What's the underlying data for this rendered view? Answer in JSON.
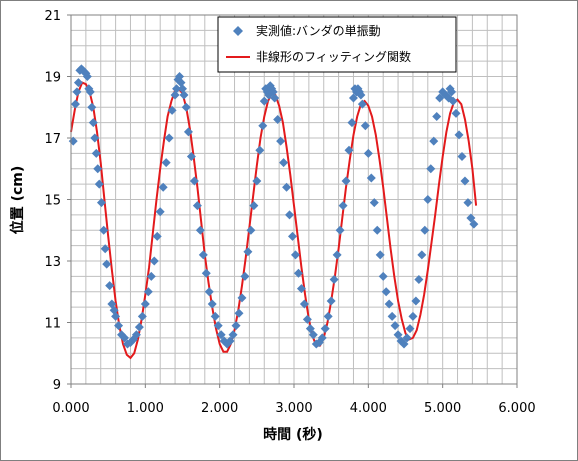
{
  "chart_data": {
    "type": "scatter",
    "title": "",
    "xlabel": "時間 (秒)",
    "ylabel": "位置 (cm)",
    "xlim": [
      0,
      6
    ],
    "ylim": [
      9,
      21
    ],
    "xticks": [
      "0.000",
      "1.000",
      "2.000",
      "3.000",
      "4.000",
      "5.000",
      "6.000"
    ],
    "yticks": [
      "9",
      "11",
      "13",
      "15",
      "17",
      "19",
      "21"
    ],
    "grid": true,
    "legend_position": "top-right",
    "series": [
      {
        "name": "実測値:バンダの単振動",
        "kind": "scatter",
        "marker": "diamond",
        "color": "#4f81bd",
        "points": [
          [
            0.03,
            16.9
          ],
          [
            0.06,
            18.1
          ],
          [
            0.08,
            18.5
          ],
          [
            0.1,
            18.8
          ],
          [
            0.12,
            19.2
          ],
          [
            0.14,
            19.25
          ],
          [
            0.16,
            19.2
          ],
          [
            0.18,
            19.15
          ],
          [
            0.2,
            19.1
          ],
          [
            0.22,
            19.0
          ],
          [
            0.24,
            18.6
          ],
          [
            0.26,
            18.5
          ],
          [
            0.28,
            18.0
          ],
          [
            0.3,
            17.5
          ],
          [
            0.32,
            17.0
          ],
          [
            0.34,
            16.5
          ],
          [
            0.36,
            16.0
          ],
          [
            0.38,
            15.5
          ],
          [
            0.41,
            14.9
          ],
          [
            0.44,
            14.0
          ],
          [
            0.46,
            13.4
          ],
          [
            0.48,
            12.9
          ],
          [
            0.52,
            12.2
          ],
          [
            0.55,
            11.6
          ],
          [
            0.58,
            11.4
          ],
          [
            0.6,
            11.2
          ],
          [
            0.64,
            10.9
          ],
          [
            0.68,
            10.6
          ],
          [
            0.72,
            10.5
          ],
          [
            0.76,
            10.3
          ],
          [
            0.8,
            10.35
          ],
          [
            0.84,
            10.45
          ],
          [
            0.88,
            10.6
          ],
          [
            0.92,
            10.85
          ],
          [
            0.96,
            11.2
          ],
          [
            1.0,
            11.6
          ],
          [
            1.04,
            12.0
          ],
          [
            1.08,
            12.5
          ],
          [
            1.12,
            13.0
          ],
          [
            1.16,
            13.8
          ],
          [
            1.2,
            14.6
          ],
          [
            1.24,
            15.4
          ],
          [
            1.28,
            16.2
          ],
          [
            1.32,
            17.0
          ],
          [
            1.36,
            17.9
          ],
          [
            1.4,
            18.4
          ],
          [
            1.42,
            18.6
          ],
          [
            1.44,
            18.9
          ],
          [
            1.46,
            19.0
          ],
          [
            1.48,
            18.8
          ],
          [
            1.5,
            18.6
          ],
          [
            1.52,
            18.4
          ],
          [
            1.55,
            18.0
          ],
          [
            1.58,
            17.2
          ],
          [
            1.62,
            16.4
          ],
          [
            1.66,
            15.6
          ],
          [
            1.7,
            14.8
          ],
          [
            1.74,
            14.0
          ],
          [
            1.78,
            13.2
          ],
          [
            1.82,
            12.6
          ],
          [
            1.86,
            12.0
          ],
          [
            1.9,
            11.6
          ],
          [
            1.94,
            11.2
          ],
          [
            1.98,
            10.9
          ],
          [
            2.02,
            10.6
          ],
          [
            2.06,
            10.4
          ],
          [
            2.1,
            10.3
          ],
          [
            2.14,
            10.4
          ],
          [
            2.18,
            10.6
          ],
          [
            2.22,
            10.9
          ],
          [
            2.26,
            11.3
          ],
          [
            2.3,
            11.8
          ],
          [
            2.34,
            12.5
          ],
          [
            2.38,
            13.3
          ],
          [
            2.42,
            14.0
          ],
          [
            2.46,
            14.8
          ],
          [
            2.5,
            15.6
          ],
          [
            2.54,
            16.6
          ],
          [
            2.58,
            17.4
          ],
          [
            2.6,
            18.2
          ],
          [
            2.62,
            18.6
          ],
          [
            2.64,
            18.5
          ],
          [
            2.66,
            18.4
          ],
          [
            2.68,
            18.7
          ],
          [
            2.7,
            18.6
          ],
          [
            2.72,
            18.5
          ],
          [
            2.74,
            18.3
          ],
          [
            2.78,
            17.6
          ],
          [
            2.82,
            16.9
          ],
          [
            2.86,
            16.2
          ],
          [
            2.9,
            15.4
          ],
          [
            2.94,
            14.5
          ],
          [
            2.98,
            13.8
          ],
          [
            3.02,
            13.2
          ],
          [
            3.06,
            12.6
          ],
          [
            3.1,
            12.1
          ],
          [
            3.14,
            11.6
          ],
          [
            3.18,
            11.1
          ],
          [
            3.22,
            10.8
          ],
          [
            3.26,
            10.6
          ],
          [
            3.3,
            10.3
          ],
          [
            3.34,
            10.35
          ],
          [
            3.38,
            10.5
          ],
          [
            3.42,
            10.8
          ],
          [
            3.46,
            11.2
          ],
          [
            3.5,
            11.7
          ],
          [
            3.54,
            12.4
          ],
          [
            3.58,
            13.2
          ],
          [
            3.62,
            14.0
          ],
          [
            3.66,
            14.8
          ],
          [
            3.7,
            15.6
          ],
          [
            3.74,
            16.6
          ],
          [
            3.78,
            17.5
          ],
          [
            3.8,
            18.3
          ],
          [
            3.82,
            18.6
          ],
          [
            3.84,
            18.5
          ],
          [
            3.86,
            18.6
          ],
          [
            3.88,
            18.5
          ],
          [
            3.9,
            18.4
          ],
          [
            3.92,
            18.1
          ],
          [
            3.96,
            17.4
          ],
          [
            4.0,
            16.5
          ],
          [
            4.04,
            15.7
          ],
          [
            4.08,
            14.9
          ],
          [
            4.12,
            14.0
          ],
          [
            4.16,
            13.2
          ],
          [
            4.2,
            12.5
          ],
          [
            4.24,
            12.0
          ],
          [
            4.28,
            11.6
          ],
          [
            4.32,
            11.2
          ],
          [
            4.36,
            10.9
          ],
          [
            4.4,
            10.6
          ],
          [
            4.44,
            10.4
          ],
          [
            4.48,
            10.3
          ],
          [
            4.52,
            10.5
          ],
          [
            4.56,
            10.8
          ],
          [
            4.6,
            11.2
          ],
          [
            4.64,
            11.7
          ],
          [
            4.68,
            12.4
          ],
          [
            4.72,
            13.2
          ],
          [
            4.76,
            14.0
          ],
          [
            4.8,
            15.0
          ],
          [
            4.84,
            16.0
          ],
          [
            4.88,
            16.9
          ],
          [
            4.92,
            17.7
          ],
          [
            4.96,
            18.3
          ],
          [
            5.0,
            18.5
          ],
          [
            5.04,
            18.4
          ],
          [
            5.08,
            18.3
          ],
          [
            5.1,
            18.6
          ],
          [
            5.12,
            18.5
          ],
          [
            5.14,
            18.2
          ],
          [
            5.18,
            17.8
          ],
          [
            5.22,
            17.1
          ],
          [
            5.26,
            16.4
          ],
          [
            5.3,
            15.6
          ],
          [
            5.34,
            14.9
          ],
          [
            5.38,
            14.4
          ],
          [
            5.42,
            14.2
          ]
        ]
      },
      {
        "name": "非線形のフィッティング関数",
        "kind": "line",
        "color": "#e31a1c",
        "points": [
          [
            0.0,
            17.2
          ],
          [
            0.05,
            17.9
          ],
          [
            0.1,
            18.5
          ],
          [
            0.15,
            18.8
          ],
          [
            0.2,
            18.75
          ],
          [
            0.25,
            18.5
          ],
          [
            0.3,
            18.0
          ],
          [
            0.35,
            17.2
          ],
          [
            0.4,
            16.2
          ],
          [
            0.45,
            15.0
          ],
          [
            0.5,
            13.8
          ],
          [
            0.55,
            12.7
          ],
          [
            0.6,
            11.7
          ],
          [
            0.65,
            10.9
          ],
          [
            0.7,
            10.3
          ],
          [
            0.75,
            9.95
          ],
          [
            0.8,
            9.85
          ],
          [
            0.85,
            10.0
          ],
          [
            0.9,
            10.45
          ],
          [
            0.95,
            11.1
          ],
          [
            1.0,
            11.9
          ],
          [
            1.05,
            12.8
          ],
          [
            1.1,
            13.9
          ],
          [
            1.15,
            15.0
          ],
          [
            1.2,
            16.0
          ],
          [
            1.25,
            16.9
          ],
          [
            1.3,
            17.7
          ],
          [
            1.35,
            18.2
          ],
          [
            1.4,
            18.55
          ],
          [
            1.45,
            18.6
          ],
          [
            1.5,
            18.45
          ],
          [
            1.55,
            18.0
          ],
          [
            1.6,
            17.3
          ],
          [
            1.65,
            16.4
          ],
          [
            1.7,
            15.4
          ],
          [
            1.75,
            14.3
          ],
          [
            1.8,
            13.2
          ],
          [
            1.85,
            12.3
          ],
          [
            1.9,
            11.5
          ],
          [
            1.95,
            10.8
          ],
          [
            2.0,
            10.3
          ],
          [
            2.05,
            10.05
          ],
          [
            2.1,
            10.05
          ],
          [
            2.15,
            10.3
          ],
          [
            2.2,
            10.75
          ],
          [
            2.25,
            11.4
          ],
          [
            2.3,
            12.2
          ],
          [
            2.35,
            13.1
          ],
          [
            2.4,
            14.1
          ],
          [
            2.45,
            15.1
          ],
          [
            2.5,
            16.1
          ],
          [
            2.55,
            17.0
          ],
          [
            2.6,
            17.7
          ],
          [
            2.65,
            18.2
          ],
          [
            2.7,
            18.45
          ],
          [
            2.75,
            18.4
          ],
          [
            2.8,
            18.05
          ],
          [
            2.85,
            17.5
          ],
          [
            2.9,
            16.7
          ],
          [
            2.95,
            15.8
          ],
          [
            3.0,
            14.8
          ],
          [
            3.05,
            13.8
          ],
          [
            3.1,
            12.8
          ],
          [
            3.15,
            11.9
          ],
          [
            3.2,
            11.1
          ],
          [
            3.25,
            10.55
          ],
          [
            3.3,
            10.25
          ],
          [
            3.35,
            10.25
          ],
          [
            3.4,
            10.5
          ],
          [
            3.45,
            11.0
          ],
          [
            3.5,
            11.7
          ],
          [
            3.55,
            12.5
          ],
          [
            3.6,
            13.4
          ],
          [
            3.65,
            14.4
          ],
          [
            3.7,
            15.4
          ],
          [
            3.75,
            16.3
          ],
          [
            3.8,
            17.1
          ],
          [
            3.85,
            17.7
          ],
          [
            3.9,
            18.1
          ],
          [
            3.95,
            18.2
          ],
          [
            4.0,
            18.05
          ],
          [
            4.05,
            17.7
          ],
          [
            4.1,
            17.1
          ],
          [
            4.15,
            16.3
          ],
          [
            4.2,
            15.4
          ],
          [
            4.25,
            14.4
          ],
          [
            4.3,
            13.4
          ],
          [
            4.35,
            12.5
          ],
          [
            4.4,
            11.7
          ],
          [
            4.45,
            11.1
          ],
          [
            4.5,
            10.65
          ],
          [
            4.55,
            10.45
          ],
          [
            4.6,
            10.5
          ],
          [
            4.65,
            10.75
          ],
          [
            4.7,
            11.25
          ],
          [
            4.75,
            11.9
          ],
          [
            4.8,
            12.7
          ],
          [
            4.85,
            13.6
          ],
          [
            4.9,
            14.5
          ],
          [
            4.95,
            15.5
          ],
          [
            5.0,
            16.4
          ],
          [
            5.05,
            17.2
          ],
          [
            5.1,
            17.8
          ],
          [
            5.15,
            18.15
          ],
          [
            5.2,
            18.25
          ],
          [
            5.25,
            18.1
          ],
          [
            5.3,
            17.6
          ],
          [
            5.35,
            16.9
          ],
          [
            5.4,
            16.0
          ],
          [
            5.45,
            14.8
          ]
        ]
      }
    ]
  }
}
